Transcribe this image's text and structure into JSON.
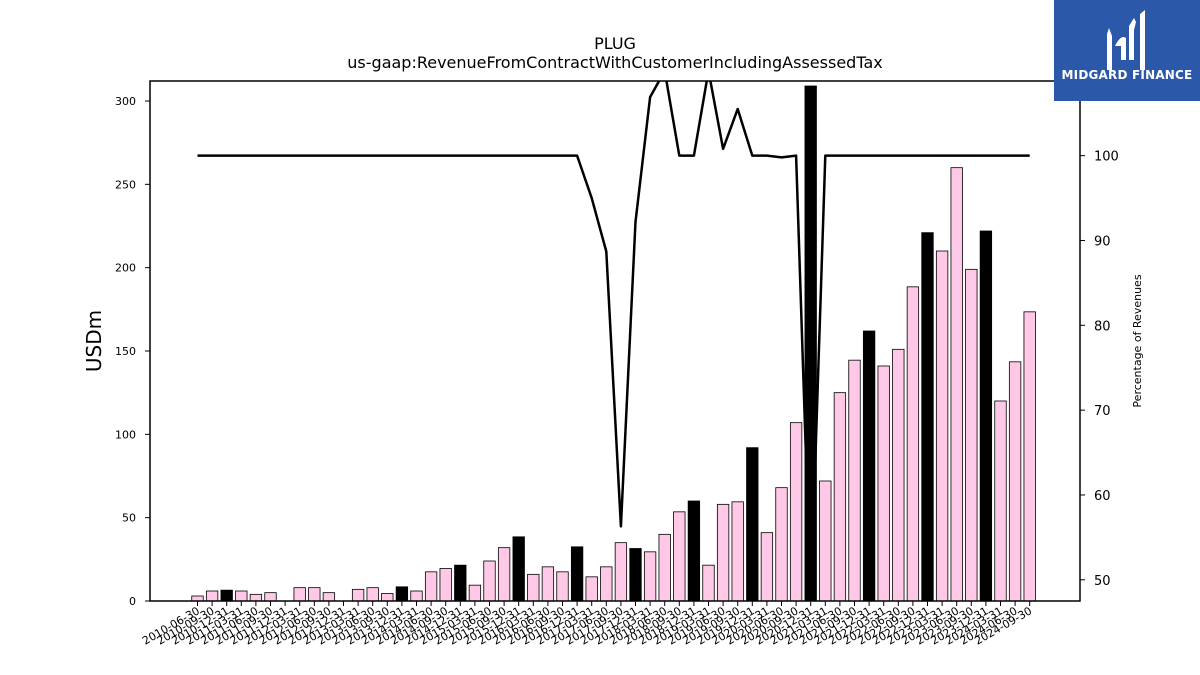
{
  "brand": {
    "name": "MIDGARD FINANCE",
    "bg_color": "#2b58a8"
  },
  "chart_data": {
    "type": "bar",
    "title": "PLUG",
    "subtitle": "us-gaap:RevenueFromContractWithCustomerIncludingAssessedTax",
    "ylabel": "USDm",
    "y2label": "Percentage of Revenues",
    "ylim": [
      0,
      312
    ],
    "y2lim": [
      47.5,
      108.8
    ],
    "yticks": [
      0,
      50,
      100,
      150,
      200,
      250,
      300
    ],
    "y2ticks": [
      50,
      60,
      70,
      80,
      90,
      100
    ],
    "grid": false,
    "legend": "none",
    "colors": {
      "quarterly_bar": "#ffc8e6",
      "annual_bar": "#000000",
      "line": "#000000"
    },
    "categories": [
      "2010-06-30",
      "2010-09-30",
      "2010-12-31",
      "2011-03-31",
      "2011-06-30",
      "2011-09-30",
      "2011-12-31",
      "2012-03-31",
      "2012-06-30",
      "2012-09-30",
      "2012-12-31",
      "2013-03-31",
      "2013-06-30",
      "2013-09-30",
      "2013-12-31",
      "2014-03-31",
      "2014-06-30",
      "2014-09-30",
      "2014-12-31",
      "2015-03-31",
      "2015-06-30",
      "2015-09-30",
      "2015-12-31",
      "2016-03-31",
      "2016-06-30",
      "2016-09-30",
      "2016-12-31",
      "2017-03-31",
      "2017-06-30",
      "2017-09-30",
      "2017-12-31",
      "2018-03-31",
      "2018-06-30",
      "2018-09-30",
      "2018-12-31",
      "2019-03-31",
      "2019-06-30",
      "2019-09-30",
      "2019-12-31",
      "2020-03-31",
      "2020-06-30",
      "2020-09-30",
      "2020-12-31",
      "2021-03-31",
      "2021-06-30",
      "2021-09-30",
      "2021-12-31",
      "2022-03-31",
      "2022-06-30",
      "2022-09-30",
      "2022-12-31",
      "2023-03-31",
      "2023-06-30",
      "2023-09-30",
      "2023-12-31",
      "2024-03-31",
      "2024-06-30",
      "2024-09-30"
    ],
    "series": [
      {
        "role": "bars",
        "values": [
          3,
          6,
          6.5,
          6,
          4,
          5,
          0,
          8,
          8,
          5,
          0,
          7,
          8,
          4.5,
          8.5,
          6,
          17.5,
          19.5,
          21.5,
          9.5,
          24,
          32,
          38.5,
          16,
          20.5,
          17.5,
          32.5,
          14.5,
          20.5,
          35,
          31.5,
          29.5,
          40,
          53.5,
          60,
          21.5,
          58,
          59.5,
          92,
          41,
          68,
          107,
          309,
          72,
          125,
          144.5,
          162,
          141,
          151,
          188.5,
          221,
          210,
          260,
          199,
          222,
          120,
          143.5,
          173.5
        ],
        "annual_flags": [
          false,
          false,
          true,
          false,
          false,
          false,
          true,
          false,
          false,
          false,
          true,
          false,
          false,
          false,
          true,
          false,
          false,
          false,
          true,
          false,
          false,
          false,
          true,
          false,
          false,
          false,
          true,
          false,
          false,
          false,
          true,
          false,
          false,
          false,
          true,
          false,
          false,
          false,
          true,
          false,
          false,
          false,
          true,
          false,
          false,
          false,
          true,
          false,
          false,
          false,
          true,
          false,
          false,
          false,
          true,
          false,
          false,
          false
        ]
      },
      {
        "role": "line",
        "values": [
          100,
          100,
          100,
          100,
          100,
          100,
          100,
          100,
          100,
          100,
          100,
          100,
          100,
          100,
          100,
          100,
          100,
          100,
          100,
          100,
          100,
          100,
          100,
          100,
          100,
          100,
          100,
          95,
          88.7,
          56.3,
          92.2,
          106.9,
          110,
          100,
          100,
          110,
          100.8,
          105.5,
          100,
          100,
          99.8,
          100,
          47.5,
          100,
          100,
          100,
          100,
          100,
          100,
          100,
          100,
          100,
          100,
          100,
          100,
          100,
          100,
          100
        ]
      }
    ]
  }
}
